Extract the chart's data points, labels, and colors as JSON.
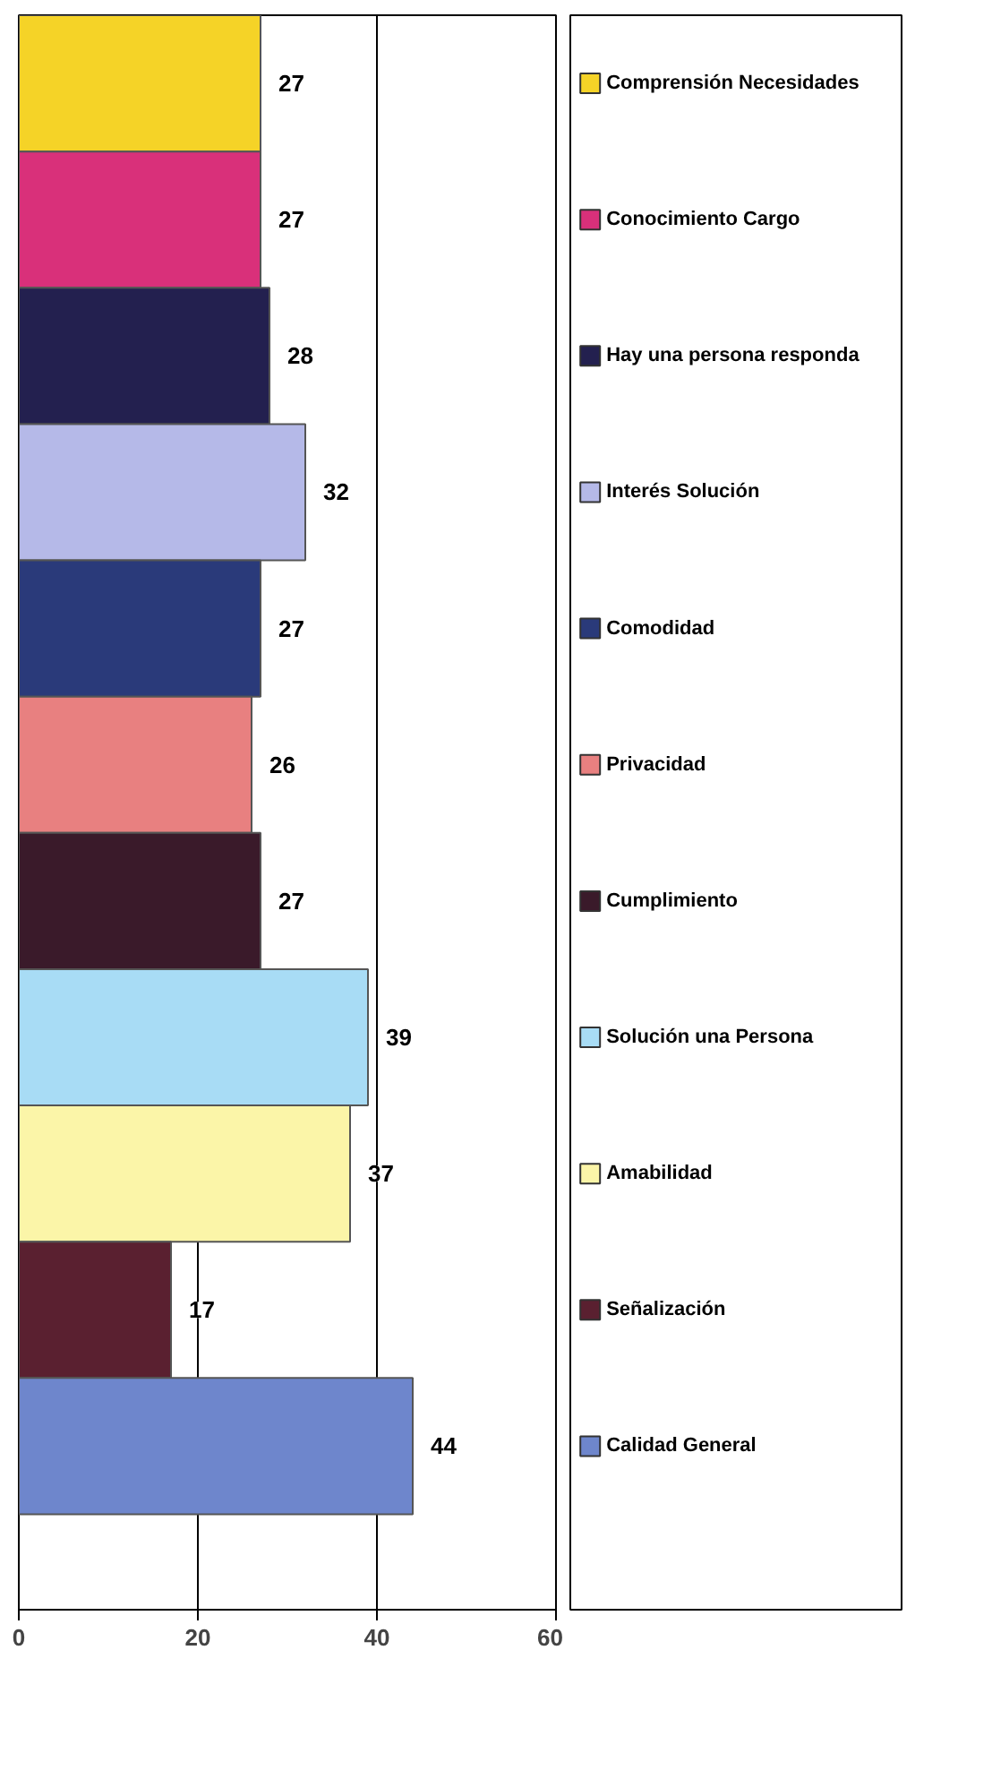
{
  "chart_data": {
    "type": "bar",
    "orientation": "horizontal",
    "categories": [
      null
    ],
    "series": [
      {
        "name": "Comprensión Necesidades",
        "color": "#f5d327",
        "values": [
          27
        ]
      },
      {
        "name": "Conocimiento Cargo",
        "color": "#d9307a",
        "values": [
          27
        ]
      },
      {
        "name": "Hay una persona responda",
        "color": "#23204f",
        "values": [
          28
        ]
      },
      {
        "name": "Interés Solución",
        "color": "#b5b9e8",
        "values": [
          32
        ]
      },
      {
        "name": "Comodidad",
        "color": "#2a3a7a",
        "values": [
          27
        ]
      },
      {
        "name": "Privacidad",
        "color": "#e88080",
        "values": [
          26
        ]
      },
      {
        "name": "Cumplimiento",
        "color": "#3a1a2a",
        "values": [
          27
        ]
      },
      {
        "name": "Solución una Persona",
        "color": "#a8dcf5",
        "values": [
          39
        ]
      },
      {
        "name": "Amabilidad",
        "color": "#fbf5a8",
        "values": [
          37
        ]
      },
      {
        "name": "Señalización",
        "color": "#5a2030",
        "values": [
          17
        ]
      },
      {
        "name": "Calidad General",
        "color": "#6e86cc",
        "values": [
          44
        ]
      }
    ],
    "xlim": [
      0,
      60
    ],
    "xticks": [
      0,
      20,
      40,
      60
    ],
    "grid": "x",
    "data_labels": true,
    "legend": "right"
  }
}
